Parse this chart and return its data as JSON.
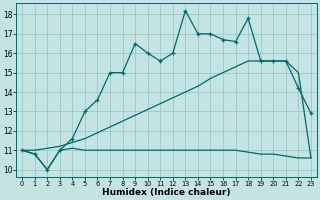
{
  "xlabel": "Humidex (Indice chaleur)",
  "background_color": "#c4e4e4",
  "grid_color": "#98c8c8",
  "line_color": "#006868",
  "xlim": [
    -0.5,
    23.5
  ],
  "ylim": [
    9.6,
    18.6
  ],
  "xticks": [
    0,
    1,
    2,
    3,
    4,
    5,
    6,
    7,
    8,
    9,
    10,
    11,
    12,
    13,
    14,
    15,
    16,
    17,
    18,
    19,
    20,
    21,
    22,
    23
  ],
  "yticks": [
    10,
    11,
    12,
    13,
    14,
    15,
    16,
    17,
    18
  ],
  "flat_x": [
    0,
    1,
    2,
    3,
    4,
    5,
    6,
    7,
    8,
    9,
    10,
    11,
    12,
    13,
    14,
    15,
    16,
    17,
    18,
    19,
    20,
    21,
    22,
    23
  ],
  "flat_y": [
    11.0,
    10.8,
    10.0,
    11.0,
    11.1,
    11.0,
    11.0,
    11.0,
    11.0,
    11.0,
    11.0,
    11.0,
    11.0,
    11.0,
    11.0,
    11.0,
    11.0,
    11.0,
    10.9,
    10.8,
    10.8,
    10.7,
    10.6,
    10.6
  ],
  "diag_x": [
    0,
    1,
    2,
    3,
    4,
    5,
    6,
    7,
    8,
    9,
    10,
    11,
    12,
    13,
    14,
    15,
    16,
    17,
    18,
    19,
    20,
    21,
    22,
    23
  ],
  "diag_y": [
    11.0,
    11.0,
    11.1,
    11.2,
    11.4,
    11.6,
    11.9,
    12.2,
    12.5,
    12.8,
    13.1,
    13.4,
    13.7,
    14.0,
    14.3,
    14.7,
    15.0,
    15.3,
    15.6,
    15.6,
    15.6,
    15.6,
    15.0,
    10.6
  ],
  "curve_x": [
    0,
    1,
    2,
    3,
    4,
    5,
    6,
    7,
    8,
    9,
    10,
    11,
    12,
    13,
    14,
    15,
    16,
    17,
    18,
    19,
    20,
    21,
    22,
    23
  ],
  "curve_y": [
    11.0,
    10.8,
    10.0,
    11.0,
    11.6,
    13.0,
    13.6,
    15.0,
    15.0,
    16.5,
    16.0,
    15.6,
    16.0,
    18.2,
    17.0,
    17.0,
    16.7,
    16.6,
    17.8,
    15.6,
    15.6,
    15.6,
    14.2,
    12.9
  ]
}
